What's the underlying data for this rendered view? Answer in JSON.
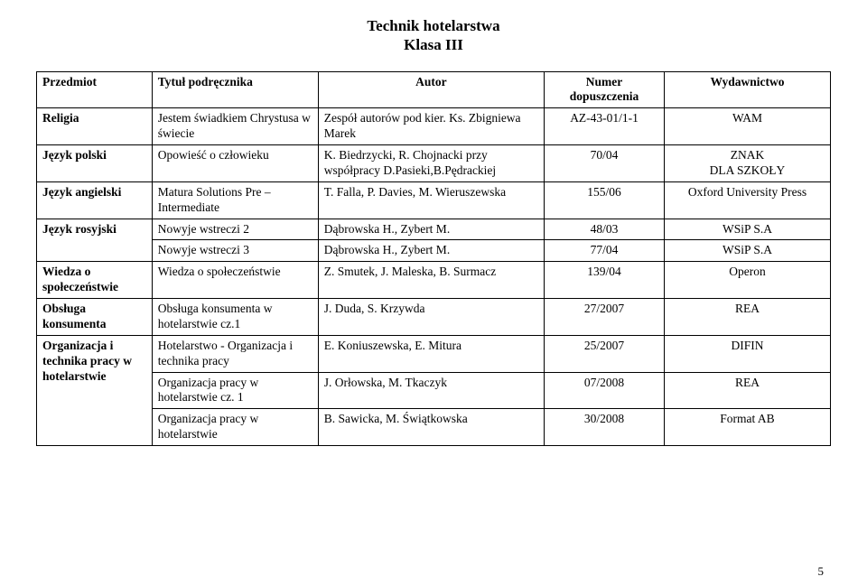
{
  "page_number": "5",
  "title": {
    "line1": "Technik hotelarstwa",
    "line2": "Klasa III"
  },
  "header": {
    "col1": "Przedmiot",
    "col2": "Tytuł podręcznika",
    "col3": "Autor",
    "col4": "Numer dopuszczenia",
    "col5": "Wydawnictwo"
  },
  "rows": {
    "religia": {
      "subject": "Religia",
      "book": "Jestem świadkiem Chrystusa w świecie",
      "author": "Zespół autorów pod kier. Ks. Zbigniewa Marek",
      "number": "AZ-43-01/1-1",
      "publisher": "WAM"
    },
    "polski": {
      "subject": "Język polski",
      "book": "Opowieść o człowieku",
      "author": "K. Biedrzycki, R. Chojnacki przy współpracy D.Pasieki,B.Pędrackiej",
      "number": "70/04",
      "publisher": "ZNAK\nDLA SZKOŁY"
    },
    "angielski": {
      "subject": "Język angielski",
      "book": "Matura Solutions Pre – Intermediate",
      "author": "T. Falla, P. Davies, M. Wieruszewska",
      "number": "155/06",
      "publisher": "Oxford University Press"
    },
    "rosyjski1": {
      "subject": "Język rosyjski",
      "book": "Nowyje wstreczi 2",
      "author": "Dąbrowska H., Zybert M.",
      "number": "48/03",
      "publisher": "WSiP S.A"
    },
    "rosyjski2": {
      "book": "Nowyje wstreczi 3",
      "author": "Dąbrowska H., Zybert M.",
      "number": "77/04",
      "publisher": "WSiP S.A"
    },
    "wos": {
      "subject": "Wiedza o społeczeństwie",
      "book": "Wiedza o społeczeństwie",
      "author": "Z. Smutek, J. Maleska, B. Surmacz",
      "number": "139/04",
      "publisher": "Operon"
    },
    "obsluga": {
      "subject": "Obsługa konsumenta",
      "book": "Obsługa konsumenta w hotelarstwie cz.1",
      "author": "J. Duda, S. Krzywda",
      "number": "27/2007",
      "publisher": "REA"
    },
    "org1": {
      "subject": "Organizacja i technika pracy w hotelarstwie",
      "book": "Hotelarstwo - Organizacja i technika pracy",
      "author": "E. Koniuszewska, E. Mitura",
      "number": "25/2007",
      "publisher": "DIFIN"
    },
    "org2": {
      "book": "Organizacja pracy w hotelarstwie cz. 1",
      "author": "J. Orłowska, M. Tkaczyk",
      "number": "07/2008",
      "publisher": "REA"
    },
    "org3": {
      "book": "Organizacja pracy w hotelarstwie",
      "author": "B. Sawicka, M. Świątkowska",
      "number": "30/2008",
      "publisher": "Format AB"
    }
  }
}
